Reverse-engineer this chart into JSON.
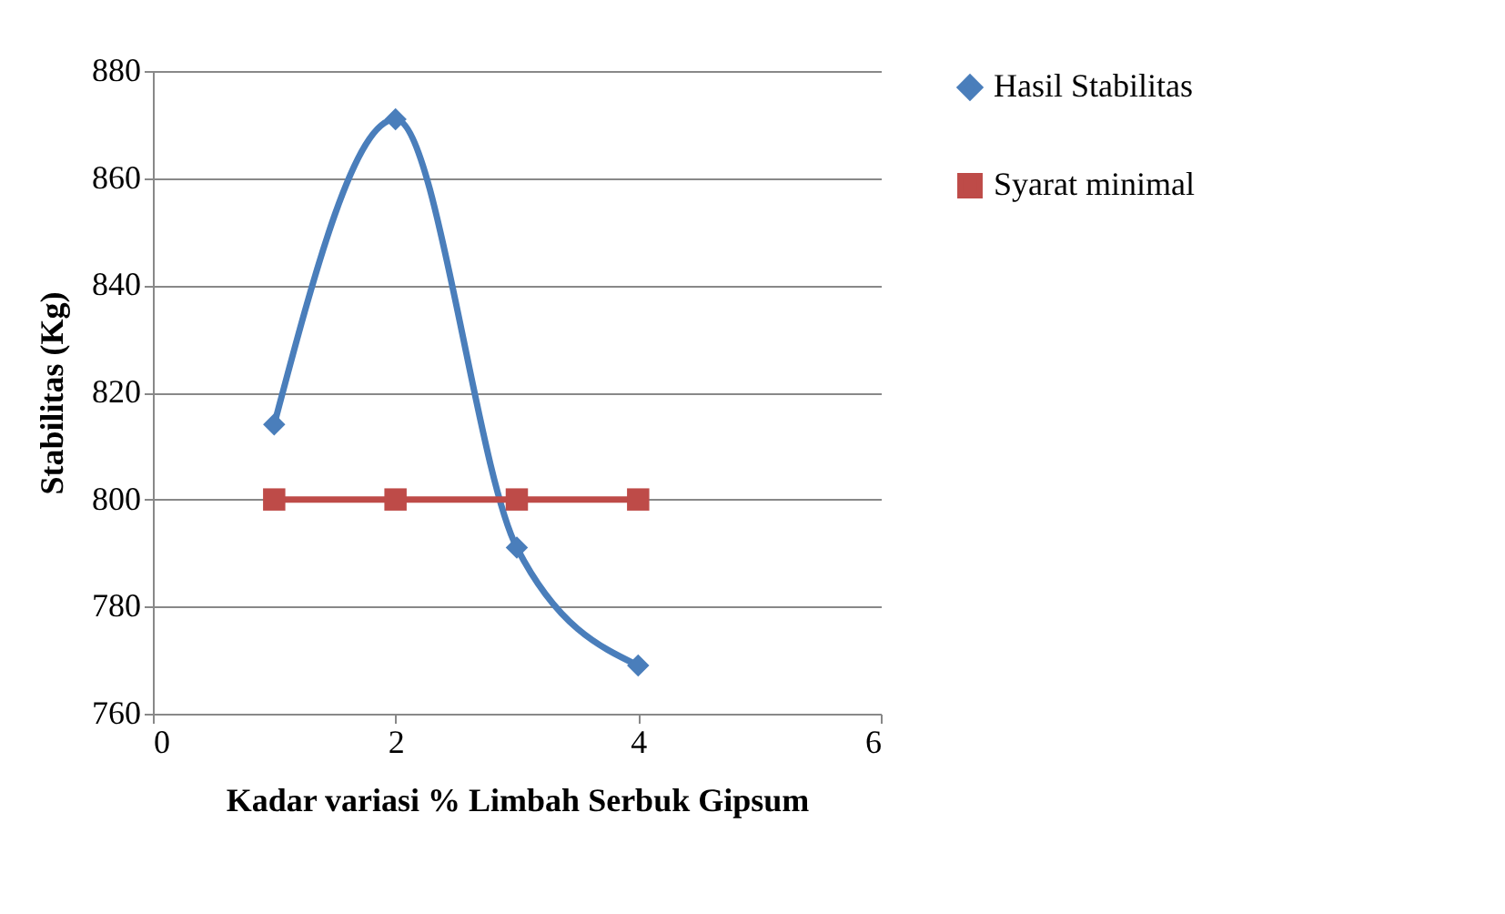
{
  "chart_data": {
    "type": "line",
    "xlabel": "Kadar  variasi % Limbah Serbuk Gipsum",
    "ylabel": "Stabilitas (Kg)",
    "xlim": [
      0,
      6
    ],
    "xticks": [
      0,
      2,
      4,
      6
    ],
    "ylim": [
      760,
      880
    ],
    "yticks": [
      760,
      780,
      800,
      820,
      840,
      860,
      880
    ],
    "grid": "y",
    "legend": "right",
    "line_style": "solid",
    "x": [
      1,
      2,
      3,
      4
    ],
    "series": [
      {
        "name": "Hasil Stabilitas",
        "color": "#4a7ebb",
        "values": [
          814,
          871,
          791,
          769
        ],
        "marker": "diamond"
      },
      {
        "name": "Syarat minimal",
        "color": "#be4b48",
        "values": [
          800,
          800,
          800,
          800
        ],
        "marker": "square"
      }
    ]
  }
}
